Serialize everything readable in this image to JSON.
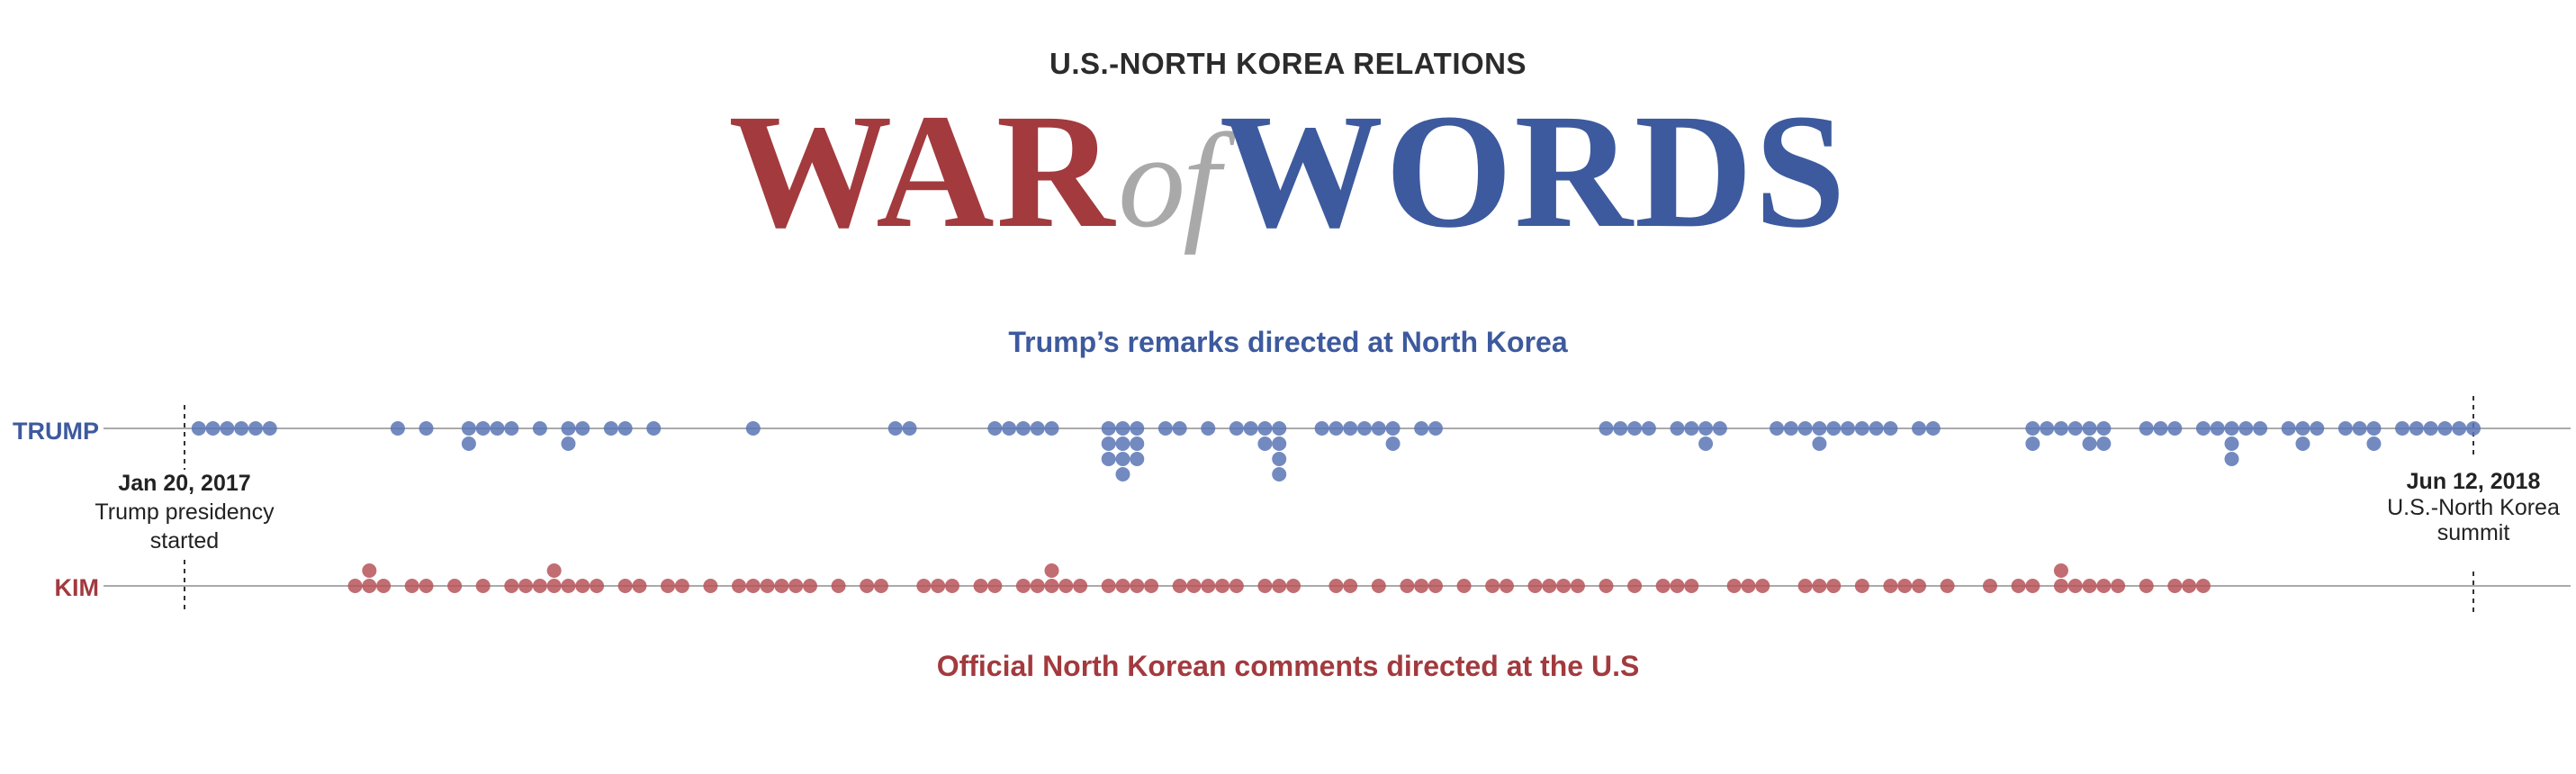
{
  "kicker": "U.S.-NORTH KOREA RELATIONS",
  "headline": {
    "part1": "WAR",
    "part2": "of",
    "part3": "WORDS"
  },
  "colors": {
    "trump": "#3d5a9e",
    "kim": "#a23a3e",
    "of": "#a9a9a9",
    "axis": "#aaaaaa",
    "dot_trump": "#5b76b5",
    "dot_kim": "#b65358"
  },
  "chart_data": {
    "type": "scatter",
    "title": "WAR of WORDS",
    "subtitle": "U.S.-NORTH KOREA RELATIONS",
    "xlabel": "",
    "ylabel": "",
    "xlim": [
      "2017-01-20",
      "2018-06-12"
    ],
    "series": [
      {
        "name": "TRUMP",
        "description": "Trump’s remarks directed at North Korea",
        "stacks": [
          [
            1,
            1
          ],
          [
            2,
            1
          ],
          [
            3,
            1
          ],
          [
            4,
            1
          ],
          [
            5,
            1
          ],
          [
            6,
            1
          ],
          [
            15,
            1
          ],
          [
            17,
            1
          ],
          [
            20,
            2
          ],
          [
            21,
            1
          ],
          [
            22,
            1
          ],
          [
            23,
            1
          ],
          [
            25,
            1
          ],
          [
            27,
            2
          ],
          [
            28,
            1
          ],
          [
            30,
            1
          ],
          [
            31,
            1
          ],
          [
            33,
            1
          ],
          [
            40,
            1
          ],
          [
            50,
            1
          ],
          [
            51,
            1
          ],
          [
            57,
            1
          ],
          [
            58,
            1
          ],
          [
            59,
            1
          ],
          [
            60,
            1
          ],
          [
            61,
            1
          ],
          [
            65,
            3
          ],
          [
            66,
            4
          ],
          [
            67,
            3
          ],
          [
            69,
            1
          ],
          [
            70,
            1
          ],
          [
            72,
            1
          ],
          [
            74,
            1
          ],
          [
            75,
            1
          ],
          [
            76,
            2
          ],
          [
            77,
            4
          ],
          [
            80,
            1
          ],
          [
            81,
            1
          ],
          [
            82,
            1
          ],
          [
            83,
            1
          ],
          [
            84,
            1
          ],
          [
            85,
            2
          ],
          [
            87,
            1
          ],
          [
            88,
            1
          ],
          [
            100,
            1
          ],
          [
            101,
            1
          ],
          [
            102,
            1
          ],
          [
            103,
            1
          ],
          [
            105,
            1
          ],
          [
            106,
            1
          ],
          [
            107,
            2
          ],
          [
            108,
            1
          ],
          [
            112,
            1
          ],
          [
            113,
            1
          ],
          [
            114,
            1
          ],
          [
            115,
            2
          ],
          [
            116,
            1
          ],
          [
            117,
            1
          ],
          [
            118,
            1
          ],
          [
            119,
            1
          ],
          [
            120,
            1
          ],
          [
            122,
            1
          ],
          [
            123,
            1
          ],
          [
            130,
            2
          ],
          [
            131,
            1
          ],
          [
            132,
            1
          ],
          [
            133,
            1
          ],
          [
            134,
            2
          ],
          [
            135,
            2
          ],
          [
            138,
            1
          ],
          [
            139,
            1
          ],
          [
            140,
            1
          ],
          [
            142,
            1
          ],
          [
            143,
            1
          ],
          [
            144,
            3
          ],
          [
            145,
            1
          ],
          [
            146,
            1
          ],
          [
            148,
            1
          ],
          [
            149,
            2
          ],
          [
            150,
            1
          ],
          [
            152,
            1
          ],
          [
            153,
            1
          ],
          [
            154,
            2
          ],
          [
            156,
            1
          ],
          [
            157,
            1
          ],
          [
            158,
            1
          ],
          [
            159,
            1
          ],
          [
            160,
            1
          ],
          [
            161,
            1
          ]
        ]
      },
      {
        "name": "KIM",
        "description": "Official North Korean comments directed at the U.S",
        "stacks": [
          [
            12,
            1
          ],
          [
            13,
            2
          ],
          [
            14,
            1
          ],
          [
            16,
            1
          ],
          [
            17,
            1
          ],
          [
            19,
            1
          ],
          [
            21,
            1
          ],
          [
            23,
            1
          ],
          [
            24,
            1
          ],
          [
            25,
            1
          ],
          [
            26,
            2
          ],
          [
            27,
            1
          ],
          [
            28,
            1
          ],
          [
            29,
            1
          ],
          [
            31,
            1
          ],
          [
            32,
            1
          ],
          [
            34,
            1
          ],
          [
            35,
            1
          ],
          [
            37,
            1
          ],
          [
            39,
            1
          ],
          [
            40,
            1
          ],
          [
            41,
            1
          ],
          [
            42,
            1
          ],
          [
            43,
            1
          ],
          [
            44,
            1
          ],
          [
            46,
            1
          ],
          [
            48,
            1
          ],
          [
            49,
            1
          ],
          [
            52,
            1
          ],
          [
            53,
            1
          ],
          [
            54,
            1
          ],
          [
            56,
            1
          ],
          [
            57,
            1
          ],
          [
            59,
            1
          ],
          [
            60,
            1
          ],
          [
            61,
            2
          ],
          [
            62,
            1
          ],
          [
            63,
            1
          ],
          [
            65,
            1
          ],
          [
            66,
            1
          ],
          [
            67,
            1
          ],
          [
            68,
            1
          ],
          [
            70,
            1
          ],
          [
            71,
            1
          ],
          [
            72,
            1
          ],
          [
            73,
            1
          ],
          [
            74,
            1
          ],
          [
            76,
            1
          ],
          [
            77,
            1
          ],
          [
            78,
            1
          ],
          [
            81,
            1
          ],
          [
            82,
            1
          ],
          [
            84,
            1
          ],
          [
            86,
            1
          ],
          [
            87,
            1
          ],
          [
            88,
            1
          ],
          [
            90,
            1
          ],
          [
            92,
            1
          ],
          [
            93,
            1
          ],
          [
            95,
            1
          ],
          [
            96,
            1
          ],
          [
            97,
            1
          ],
          [
            98,
            1
          ],
          [
            100,
            1
          ],
          [
            102,
            1
          ],
          [
            104,
            1
          ],
          [
            105,
            1
          ],
          [
            106,
            1
          ],
          [
            109,
            1
          ],
          [
            110,
            1
          ],
          [
            111,
            1
          ],
          [
            114,
            1
          ],
          [
            115,
            1
          ],
          [
            116,
            1
          ],
          [
            118,
            1
          ],
          [
            120,
            1
          ],
          [
            121,
            1
          ],
          [
            122,
            1
          ],
          [
            124,
            1
          ],
          [
            127,
            1
          ],
          [
            129,
            1
          ],
          [
            130,
            1
          ],
          [
            132,
            2
          ],
          [
            133,
            1
          ],
          [
            134,
            1
          ],
          [
            135,
            1
          ],
          [
            136,
            1
          ],
          [
            138,
            1
          ],
          [
            140,
            1
          ],
          [
            141,
            1
          ],
          [
            142,
            1
          ]
        ]
      }
    ],
    "annotations": [
      {
        "date": "Jan 20, 2017",
        "text_lines": [
          "Trump presidency",
          "started"
        ]
      },
      {
        "date": "Jun 12, 2018",
        "text_lines": [
          "U.S.-North Korea",
          "summit"
        ]
      }
    ]
  }
}
